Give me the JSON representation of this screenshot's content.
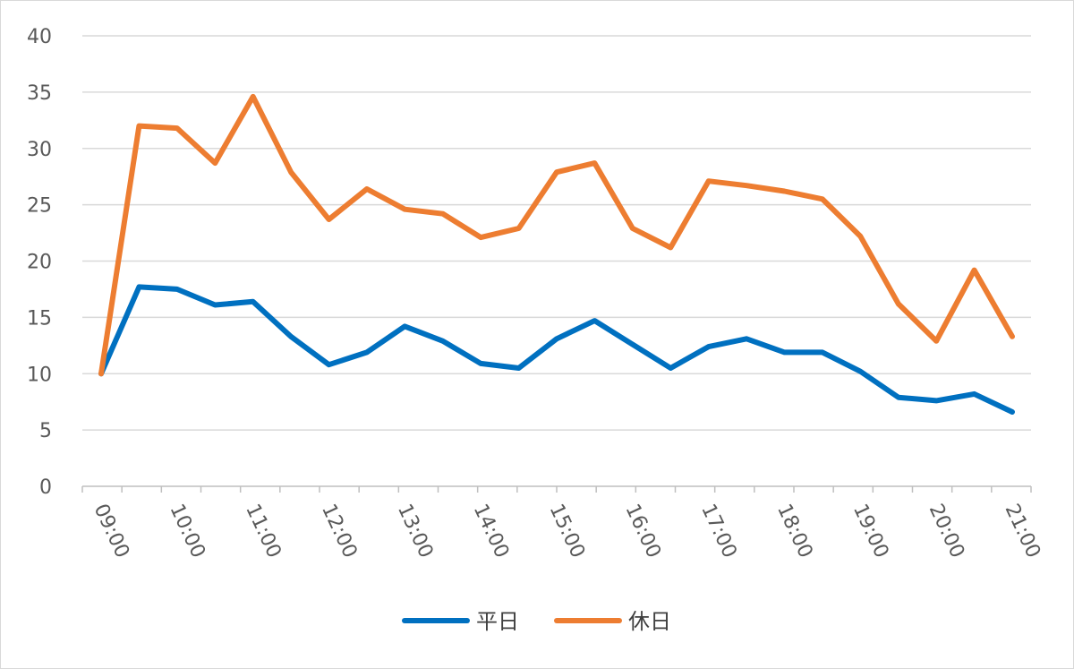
{
  "chart_data": {
    "type": "line",
    "title": "",
    "xlabel": "",
    "ylabel": "",
    "ylim": [
      0,
      40
    ],
    "yticks": [
      0,
      5,
      10,
      15,
      20,
      25,
      30,
      35,
      40
    ],
    "grid": true,
    "legend": "bottom",
    "x": [
      "09:00",
      "09:30",
      "10:00",
      "10:30",
      "11:00",
      "11:30",
      "12:00",
      "12:30",
      "13:00",
      "13:30",
      "14:00",
      "14:30",
      "15:00",
      "15:30",
      "16:00",
      "16:30",
      "17:00",
      "17:30",
      "18:00",
      "18:30",
      "19:00",
      "19:30",
      "20:00",
      "20:30",
      "21:00"
    ],
    "xtick_labels": [
      "09:00",
      "10:00",
      "11:00",
      "12:00",
      "13:00",
      "14:00",
      "15:00",
      "16:00",
      "17:00",
      "18:00",
      "19:00",
      "20:00",
      "21:00"
    ],
    "series": [
      {
        "name": "平日",
        "color": "#0070c0",
        "values": [
          10.0,
          17.7,
          17.5,
          16.1,
          16.4,
          13.3,
          10.8,
          11.9,
          14.2,
          12.9,
          10.9,
          10.5,
          13.1,
          14.7,
          12.6,
          10.5,
          12.4,
          13.1,
          11.9,
          11.9,
          10.2,
          7.9,
          7.6,
          8.2,
          6.6
        ]
      },
      {
        "name": "休日",
        "color": "#ed7d31",
        "values": [
          10.0,
          32.0,
          31.8,
          28.7,
          34.6,
          27.9,
          23.7,
          26.4,
          24.6,
          24.2,
          22.1,
          22.9,
          27.9,
          28.7,
          22.9,
          21.2,
          27.1,
          26.7,
          26.2,
          25.5,
          22.2,
          16.2,
          12.9,
          19.2,
          13.3
        ]
      }
    ]
  }
}
